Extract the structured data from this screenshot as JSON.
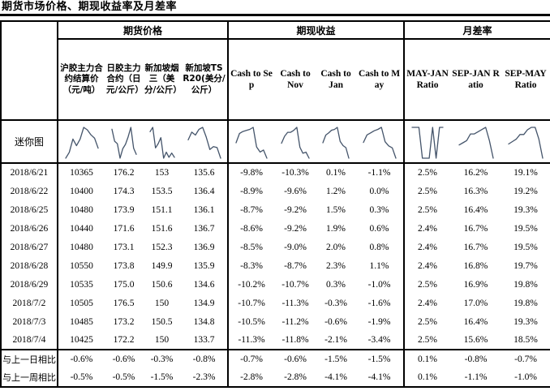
{
  "title": "期货市场价格、期现收益率及月差率",
  "colors": {
    "sparkline": "#44546A",
    "border": "#000000",
    "text": "#000000",
    "background": "#FFFFFF"
  },
  "table": {
    "groups": [
      {
        "label": "期货价格"
      },
      {
        "label": "期现收益"
      },
      {
        "label": "月差率"
      }
    ],
    "columns": [
      "沪胶主力合约结算价（元/吨）",
      "日胶主力合约（日元/公斤）",
      "新加坡烟三（美分/公斤）",
      "新加坡TSR20(美分/公斤）",
      "Cash to Sep",
      "Cash to Nov",
      "Cash to Jan",
      "Cash to May",
      "MAY-JAN Ratio",
      "SEP-JAN Ratio",
      "SEP-MAY Ratio"
    ],
    "sparkline_row_label": "迷你图",
    "rows": [
      {
        "date": "2018/6/21",
        "values": [
          "10365",
          "176.2",
          "153",
          "135.6",
          "-9.8%",
          "-10.3%",
          "0.1%",
          "-1.1%",
          "2.5%",
          "16.2%",
          "19.1%"
        ]
      },
      {
        "date": "2018/6/22",
        "values": [
          "10400",
          "174.3",
          "153.5",
          "136.4",
          "-8.9%",
          "-9.6%",
          "1.2%",
          "0.0%",
          "2.5%",
          "16.3%",
          "19.2%"
        ]
      },
      {
        "date": "2018/6/25",
        "values": [
          "10480",
          "173.9",
          "151.1",
          "136.1",
          "-8.7%",
          "-9.2%",
          "1.5%",
          "0.3%",
          "2.5%",
          "16.4%",
          "19.3%"
        ]
      },
      {
        "date": "2018/6/26",
        "values": [
          "10440",
          "171.6",
          "151.6",
          "136.7",
          "-8.6%",
          "-9.2%",
          "1.9%",
          "0.6%",
          "2.4%",
          "16.7%",
          "19.5%"
        ]
      },
      {
        "date": "2018/6/27",
        "values": [
          "10480",
          "173.1",
          "152.3",
          "136.9",
          "-8.5%",
          "-9.0%",
          "2.0%",
          "0.8%",
          "2.4%",
          "16.7%",
          "19.5%"
        ]
      },
      {
        "date": "2018/6/28",
        "values": [
          "10550",
          "173.8",
          "149.9",
          "135.9",
          "-8.3%",
          "-8.7%",
          "2.3%",
          "1.1%",
          "2.4%",
          "16.8%",
          "19.7%"
        ]
      },
      {
        "date": "2018/6/29",
        "values": [
          "10535",
          "175.0",
          "150.6",
          "134.6",
          "-10.2%",
          "-10.7%",
          "0.3%",
          "-1.0%",
          "2.5%",
          "16.9%",
          "19.8%"
        ]
      },
      {
        "date": "2018/7/2",
        "values": [
          "10505",
          "176.5",
          "150",
          "134.9",
          "-10.7%",
          "-11.3%",
          "-0.3%",
          "-1.6%",
          "2.4%",
          "17.0%",
          "19.8%"
        ]
      },
      {
        "date": "2018/7/3",
        "values": [
          "10485",
          "173.2",
          "150.5",
          "134.8",
          "-10.5%",
          "-11.2%",
          "-0.6%",
          "-1.9%",
          "2.5%",
          "16.4%",
          "19.3%"
        ]
      },
      {
        "date": "2018/7/4",
        "values": [
          "10425",
          "172.2",
          "150",
          "133.7",
          "-11.3%",
          "-11.8%",
          "-2.1%",
          "-3.4%",
          "2.5%",
          "15.6%",
          "18.5%"
        ]
      }
    ],
    "footer_rows": [
      {
        "label": "与上一日相比",
        "values": [
          "-0.6%",
          "-0.6%",
          "-0.3%",
          "-0.8%",
          "-0.7%",
          "-0.6%",
          "-1.5%",
          "-1.5%",
          "0.1%",
          "-0.8%",
          "-0.7%"
        ]
      },
      {
        "label": "与上一周相比",
        "values": [
          "-0.5%",
          "-0.5%",
          "-1.5%",
          "-2.3%",
          "-2.8%",
          "-2.8%",
          "-4.1%",
          "-4.1%",
          "0.1%",
          "-1.1%",
          "-1.0%"
        ]
      }
    ]
  },
  "chart_data": {
    "type": "line",
    "title": "迷你图 sparklines",
    "x": [
      "2018/6/21",
      "2018/6/22",
      "2018/6/25",
      "2018/6/26",
      "2018/6/27",
      "2018/6/28",
      "2018/6/29",
      "2018/7/2",
      "2018/7/3",
      "2018/7/4"
    ],
    "series": [
      {
        "name": "沪胶主力合约结算价（元/吨）",
        "values": [
          10365,
          10400,
          10480,
          10440,
          10480,
          10550,
          10535,
          10505,
          10485,
          10425
        ]
      },
      {
        "name": "日胶主力合约（日元/公斤）",
        "values": [
          176.2,
          174.3,
          173.9,
          171.6,
          173.1,
          173.8,
          175.0,
          176.5,
          173.2,
          172.2
        ]
      },
      {
        "name": "新加坡烟三（美分/公斤）",
        "values": [
          153,
          153.5,
          151.1,
          151.6,
          152.3,
          149.9,
          150.6,
          150,
          150.5,
          150
        ]
      },
      {
        "name": "新加坡TSR20(美分/公斤）",
        "values": [
          135.6,
          136.4,
          136.1,
          136.7,
          136.9,
          135.9,
          134.6,
          134.9,
          134.8,
          133.7
        ]
      },
      {
        "name": "Cash to Sep",
        "values": [
          -9.8,
          -8.9,
          -8.7,
          -8.6,
          -8.5,
          -8.3,
          -10.2,
          -10.7,
          -10.5,
          -11.3
        ]
      },
      {
        "name": "Cash to Nov",
        "values": [
          -10.3,
          -9.6,
          -9.2,
          -9.2,
          -9.0,
          -8.7,
          -10.7,
          -11.3,
          -11.2,
          -11.8
        ]
      },
      {
        "name": "Cash to Jan",
        "values": [
          0.1,
          1.2,
          1.5,
          1.9,
          2.0,
          2.3,
          0.3,
          -0.3,
          -0.6,
          -2.1
        ]
      },
      {
        "name": "Cash to May",
        "values": [
          -1.1,
          0.0,
          0.3,
          0.6,
          0.8,
          1.1,
          -1.0,
          -1.6,
          -1.9,
          -3.4
        ]
      },
      {
        "name": "MAY-JAN Ratio",
        "values": [
          2.5,
          2.5,
          2.5,
          2.4,
          2.4,
          2.4,
          2.5,
          2.4,
          2.5,
          2.5
        ]
      },
      {
        "name": "SEP-JAN Ratio",
        "values": [
          16.2,
          16.3,
          16.4,
          16.7,
          16.7,
          16.8,
          16.9,
          17.0,
          16.4,
          15.6
        ]
      },
      {
        "name": "SEP-MAY Ratio",
        "values": [
          19.1,
          19.2,
          19.3,
          19.5,
          19.5,
          19.7,
          19.8,
          19.8,
          19.3,
          18.5
        ]
      }
    ],
    "layout": {
      "legend": false,
      "grid": false,
      "axes_hidden": true
    }
  }
}
